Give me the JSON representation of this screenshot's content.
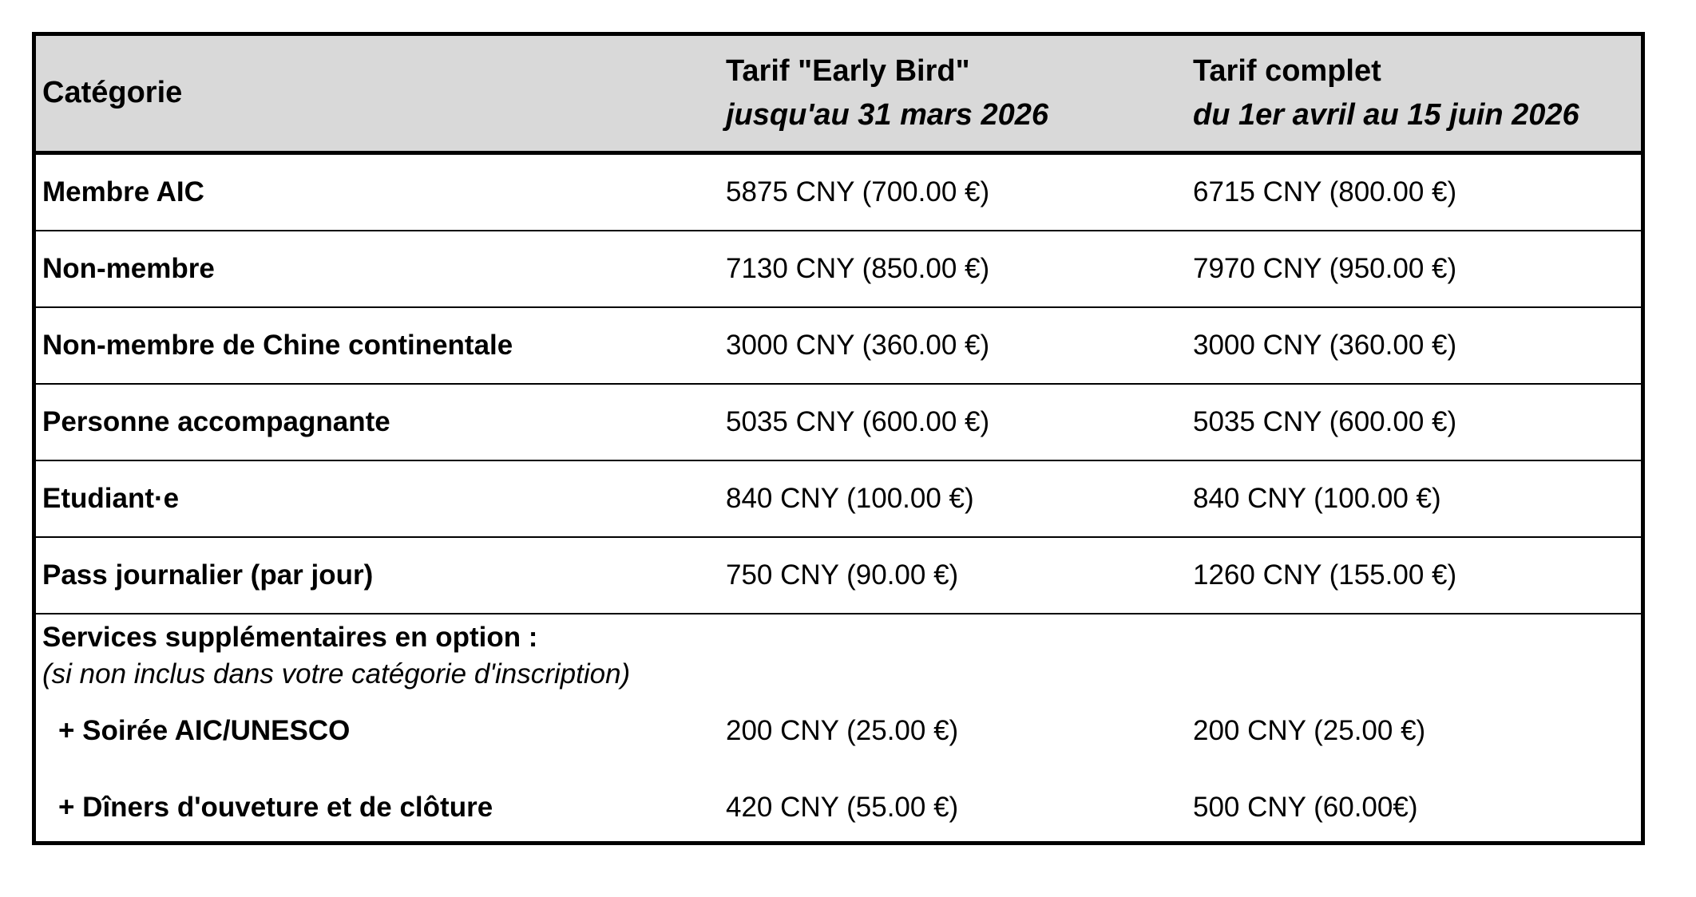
{
  "table": {
    "headers": {
      "category": "Catégorie",
      "early_bird_title": "Tarif \"Early Bird\"",
      "early_bird_period": "jusqu'au 31 mars 2026",
      "full_title": "Tarif complet",
      "full_period": "du 1er avril au 15 juin 2026"
    },
    "rows": [
      {
        "category": "Membre AIC",
        "early": "5875 CNY (700.00 €)",
        "full": "6715 CNY (800.00 €)"
      },
      {
        "category": "Non-membre",
        "early": "7130 CNY (850.00 €)",
        "full": "7970 CNY (950.00 €)"
      },
      {
        "category": "Non-membre de Chine continentale",
        "early": "3000 CNY (360.00 €)",
        "full": "3000 CNY (360.00 €)"
      },
      {
        "category": "Personne accompagnante",
        "early": "5035 CNY (600.00 €)",
        "full": "5035 CNY (600.00 €)"
      },
      {
        "category": "Etudiant·e",
        "early": "840 CNY (100.00 €)",
        "full": "840 CNY (100.00 €)"
      },
      {
        "category": "Pass journalier (par jour)",
        "early": "750 CNY (90.00 €)",
        "full": "1260 CNY (155.00 €)"
      }
    ],
    "options": {
      "title": "Services supplémentaires en option :",
      "note": "(si non inclus dans votre catégorie d'inscription)",
      "items": [
        {
          "category": "+ Soirée AIC/UNESCO",
          "early": "200 CNY (25.00 €)",
          "full": "200 CNY (25.00 €)"
        },
        {
          "category": "+ Dîners d'ouveture et de clôture",
          "early": "420 CNY (55.00 €)",
          "full": "500 CNY (60.00€)"
        }
      ]
    }
  }
}
